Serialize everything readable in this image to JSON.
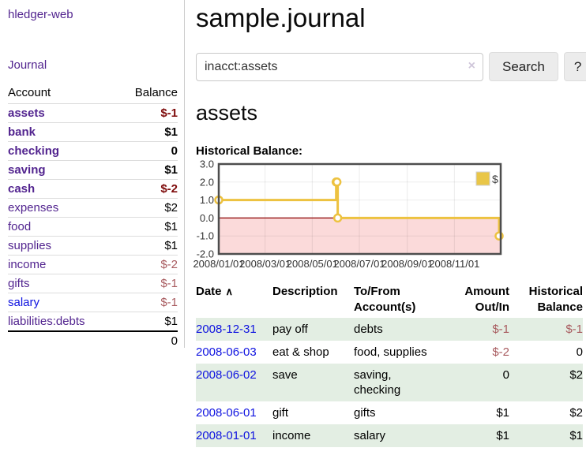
{
  "app": {
    "brand": "hledger-web",
    "nav_journal": "Journal"
  },
  "sidebar": {
    "headers": [
      "Account",
      "Balance"
    ],
    "rows": [
      {
        "account": "assets",
        "balance": "$-1",
        "depth": 1,
        "bold": true,
        "link": "purple",
        "balance_class": "neg_dark"
      },
      {
        "account": "bank",
        "balance": "$1",
        "depth": 2,
        "bold": true,
        "link": "purple",
        "balance_class": ""
      },
      {
        "account": "checking",
        "balance": "0",
        "depth": 3,
        "bold": true,
        "link": "purple",
        "balance_class": ""
      },
      {
        "account": "saving",
        "balance": "$1",
        "depth": 3,
        "bold": true,
        "link": "purple",
        "balance_class": ""
      },
      {
        "account": "cash",
        "balance": "$-2",
        "depth": 2,
        "bold": true,
        "link": "purple",
        "balance_class": "neg_dark"
      },
      {
        "account": "expenses",
        "balance": "$2",
        "depth": 1,
        "bold": false,
        "link": "purple",
        "balance_class": ""
      },
      {
        "account": "food",
        "balance": "$1",
        "depth": 2,
        "bold": false,
        "link": "purple",
        "balance_class": ""
      },
      {
        "account": "supplies",
        "balance": "$1",
        "depth": 2,
        "bold": false,
        "link": "purple",
        "balance_class": ""
      },
      {
        "account": "income",
        "balance": "$-2",
        "depth": 1,
        "bold": false,
        "link": "purple",
        "balance_class": "neg_muted"
      },
      {
        "account": "gifts",
        "balance": "$-1",
        "depth": 2,
        "bold": false,
        "link": "purple",
        "balance_class": "neg_muted"
      },
      {
        "account": "salary",
        "balance": "$-1",
        "depth": 2,
        "bold": false,
        "link": "blue",
        "balance_class": "neg_muted"
      },
      {
        "account": "liabilities:debts",
        "balance": "$1",
        "depth": 1,
        "bold": false,
        "link": "purple",
        "balance_class": ""
      }
    ],
    "total": "0"
  },
  "main": {
    "title": "sample.journal",
    "search": {
      "value": "inacct:assets",
      "clear_icon": "×",
      "button": "Search",
      "help": "?"
    },
    "account_heading": "assets",
    "chart_label": "Historical Balance:"
  },
  "chart_data": {
    "type": "line",
    "subtype": "step-after with markers",
    "title": "Historical Balance",
    "legend": [
      {
        "label": "$",
        "color": "#e9c648"
      }
    ],
    "series": [
      {
        "name": "$",
        "points": [
          [
            "2008-01-01",
            1
          ],
          [
            "2008-06-01",
            2
          ],
          [
            "2008-06-02",
            2
          ],
          [
            "2008-06-03",
            0
          ],
          [
            "2008-12-31",
            -1
          ]
        ]
      }
    ],
    "x_start": "2008-01-01",
    "x_end": "2008-12-31",
    "x_ticks": [
      "2008/01/01",
      "2008/03/01",
      "2008/05/01",
      "2008/07/01",
      "2008/09/01",
      "2008/11/01"
    ],
    "y_ticks": [
      "3.0",
      "2.0",
      "1.0",
      "0.0",
      "-1.0",
      "-2.0"
    ],
    "ylim": [
      -2,
      3
    ],
    "grid": true,
    "legend_position": "top-right",
    "line_color": "#edc240",
    "negative_fill": "#fbdada",
    "zero_line_color": "#8b0000"
  },
  "register": {
    "headers": {
      "date": "Date",
      "sort_asc_icon": "∧",
      "description": "Description",
      "accounts": "To/From Account(s)",
      "amount": "Amount Out/In",
      "balance": "Historical Balance"
    },
    "rows": [
      {
        "date": "2008-12-31",
        "description": "pay off",
        "accounts": "debts",
        "amount": "$-1",
        "balance": "$-1",
        "amount_neg": true,
        "balance_neg": true
      },
      {
        "date": "2008-06-03",
        "description": "eat & shop",
        "accounts": "food, supplies",
        "amount": "$-2",
        "balance": "0",
        "amount_neg": true,
        "balance_neg": false
      },
      {
        "date": "2008-06-02",
        "description": "save",
        "accounts": "saving, checking",
        "amount": "0",
        "balance": "$2",
        "amount_neg": false,
        "balance_neg": false
      },
      {
        "date": "2008-06-01",
        "description": "gift",
        "accounts": "gifts",
        "amount": "$1",
        "balance": "$2",
        "amount_neg": false,
        "balance_neg": false
      },
      {
        "date": "2008-01-01",
        "description": "income",
        "accounts": "salary",
        "amount": "$1",
        "balance": "$1",
        "amount_neg": false,
        "balance_neg": false
      }
    ]
  }
}
